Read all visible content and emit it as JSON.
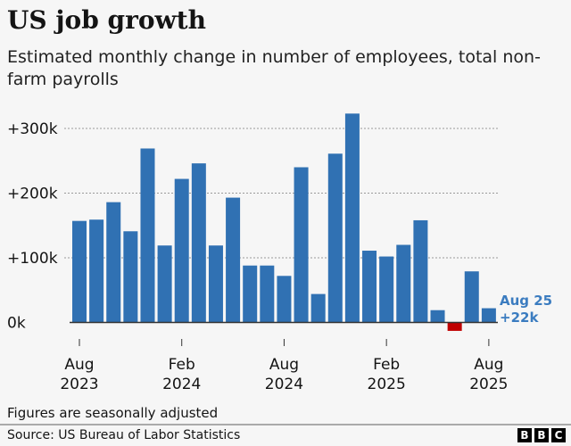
{
  "chart_data": {
    "type": "bar",
    "title": "US job growth",
    "subtitle": "Estimated monthly change in number of employees, total non-farm payrolls",
    "categories": [
      "Aug 2023",
      "Sep 2023",
      "Oct 2023",
      "Nov 2023",
      "Dec 2023",
      "Jan 2024",
      "Feb 2024",
      "Mar 2024",
      "Apr 2024",
      "May 2024",
      "Jun 2024",
      "Jul 2024",
      "Aug 2024",
      "Sep 2024",
      "Oct 2024",
      "Nov 2024",
      "Dec 2024",
      "Jan 2025",
      "Feb 2025",
      "Mar 2025",
      "Apr 2025",
      "May 2025",
      "Jun 2025",
      "Jul 2025",
      "Aug 2025"
    ],
    "values": [
      157,
      159,
      186,
      141,
      269,
      119,
      222,
      246,
      119,
      193,
      88,
      88,
      72,
      240,
      44,
      261,
      323,
      111,
      102,
      120,
      158,
      19,
      -13,
      79,
      22
    ],
    "unit": "thousands",
    "ylim": [
      -20,
      330
    ],
    "yticks": [
      {
        "value": 0,
        "label": "0k"
      },
      {
        "value": 100,
        "label": "+100k"
      },
      {
        "value": 200,
        "label": "+200k"
      },
      {
        "value": 300,
        "label": "+300k"
      }
    ],
    "xticks": [
      {
        "index": 0,
        "line1": "Aug",
        "line2": "2023"
      },
      {
        "index": 6,
        "line1": "Feb",
        "line2": "2024"
      },
      {
        "index": 12,
        "line1": "Aug",
        "line2": "2024"
      },
      {
        "index": 18,
        "line1": "Feb",
        "line2": "2025"
      },
      {
        "index": 24,
        "line1": "Aug",
        "line2": "2025"
      }
    ],
    "annotation": {
      "line1": "Aug 25",
      "line2": "+22k"
    },
    "grid": true,
    "colors": {
      "positive": "#3071b3",
      "negative": "#c00000",
      "grid": "#9a9a9a",
      "annotation": "#3b7cc0"
    }
  },
  "footer": {
    "note": "Figures are seasonally adjusted",
    "source": "Source: US Bureau of Labor Statistics",
    "logo": "BBC"
  }
}
